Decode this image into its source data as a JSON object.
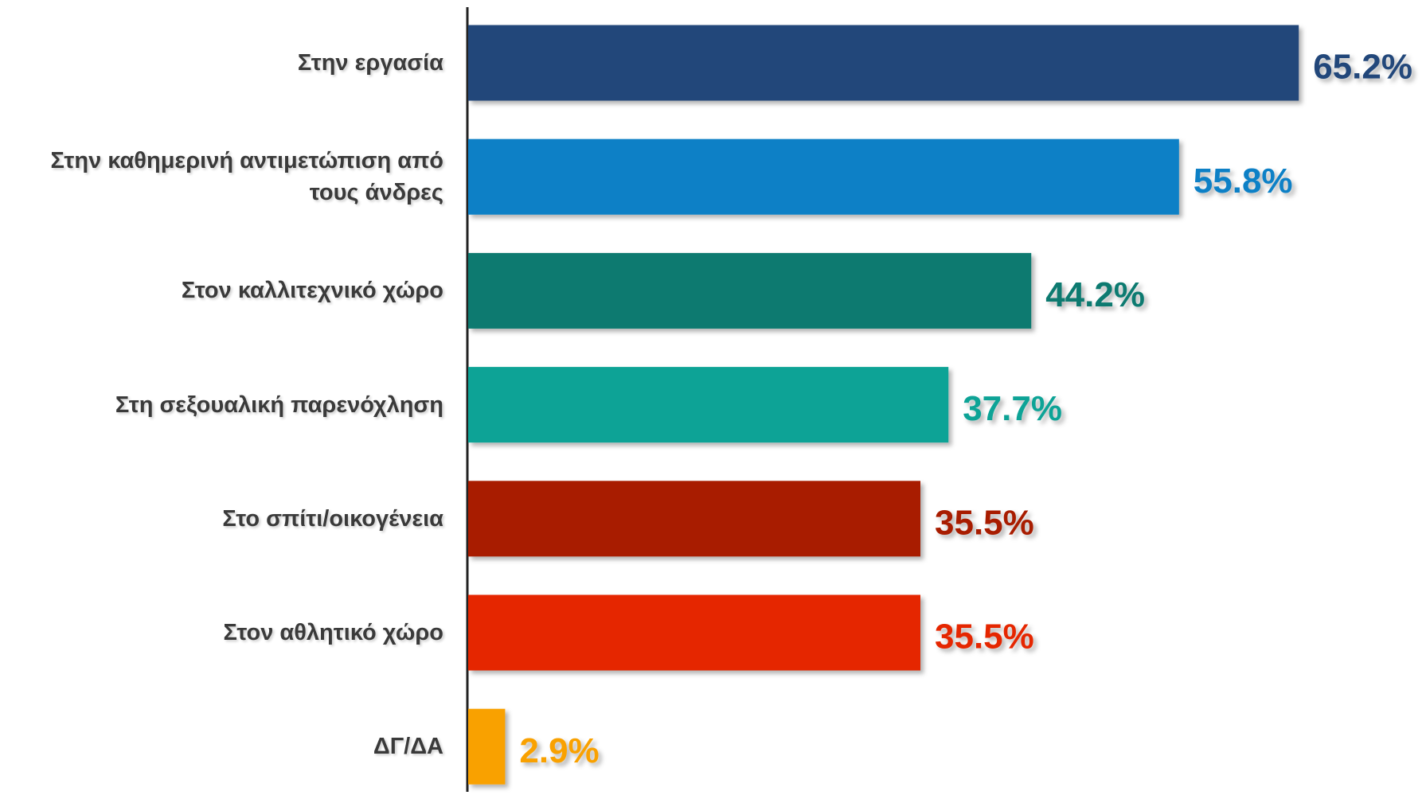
{
  "chart_data": {
    "type": "bar",
    "orientation": "horizontal",
    "categories": [
      "Στην εργασία",
      "Στην καθημερινή αντιμετώπιση από τους άνδρες",
      "Στον καλλιτεχνικό χώρο",
      "Στη σεξουαλική παρενόχληση",
      "Στο σπίτι/οικογένεια",
      "Στον αθλητικό χώρο",
      "ΔΓ/ΔΑ"
    ],
    "values": [
      65.2,
      55.8,
      44.2,
      37.7,
      35.5,
      35.5,
      2.9
    ],
    "value_labels": [
      "65.2%",
      "55.8%",
      "44.2%",
      "37.7%",
      "35.5%",
      "35.5%",
      "2.9%"
    ],
    "colors": [
      "#21477a",
      "#0980c6",
      "#077a6f",
      "#0aa396",
      "#a81e02",
      "#e52800",
      "#f9a100"
    ]
  }
}
